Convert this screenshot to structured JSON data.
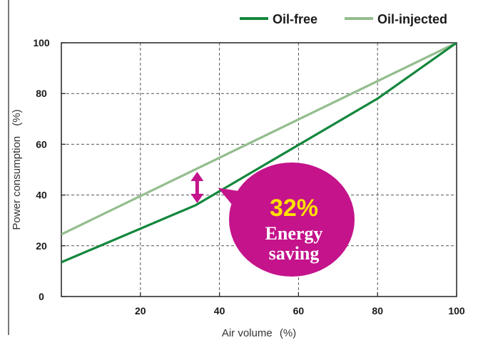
{
  "chart_data": {
    "type": "line",
    "xlabel": "Air volume",
    "xlabel_unit": "(%)",
    "ylabel": "Power consumption",
    "ylabel_unit": "(%)",
    "xlim": [
      0,
      100
    ],
    "ylim": [
      0,
      100
    ],
    "x_ticks": [
      {
        "value": 20,
        "label": "20"
      },
      {
        "value": 40,
        "label": "40"
      },
      {
        "value": 60,
        "label": "60"
      },
      {
        "value": 80,
        "label": "80"
      },
      {
        "value": 100,
        "label": "100"
      }
    ],
    "y_ticks": [
      {
        "value": 0,
        "label": "0"
      },
      {
        "value": 20,
        "label": "20"
      },
      {
        "value": 40,
        "label": "40"
      },
      {
        "value": 60,
        "label": "60"
      },
      {
        "value": 80,
        "label": "80"
      },
      {
        "value": 100,
        "label": "100"
      }
    ],
    "grid": true,
    "grid_style": "dashed",
    "legend_position": "top-right",
    "series": [
      {
        "name": "Oil-free",
        "color": "#13873d",
        "points": [
          [
            0,
            13.5
          ],
          [
            34,
            36
          ],
          [
            80,
            78
          ],
          [
            100,
            100
          ]
        ]
      },
      {
        "name": "Oil-injected",
        "color": "#94bd8e",
        "points": [
          [
            0,
            24.5
          ],
          [
            100,
            100
          ]
        ]
      }
    ],
    "annotations": {
      "arrow": {
        "x": 34,
        "y_top": 50,
        "y_bottom": 36,
        "color": "#c4138b"
      },
      "callout": {
        "percent": "32%",
        "line1": "Energy",
        "line2": "saving",
        "bubble_color": "#c4138b",
        "pointer_to": [
          40,
          40
        ]
      }
    }
  }
}
